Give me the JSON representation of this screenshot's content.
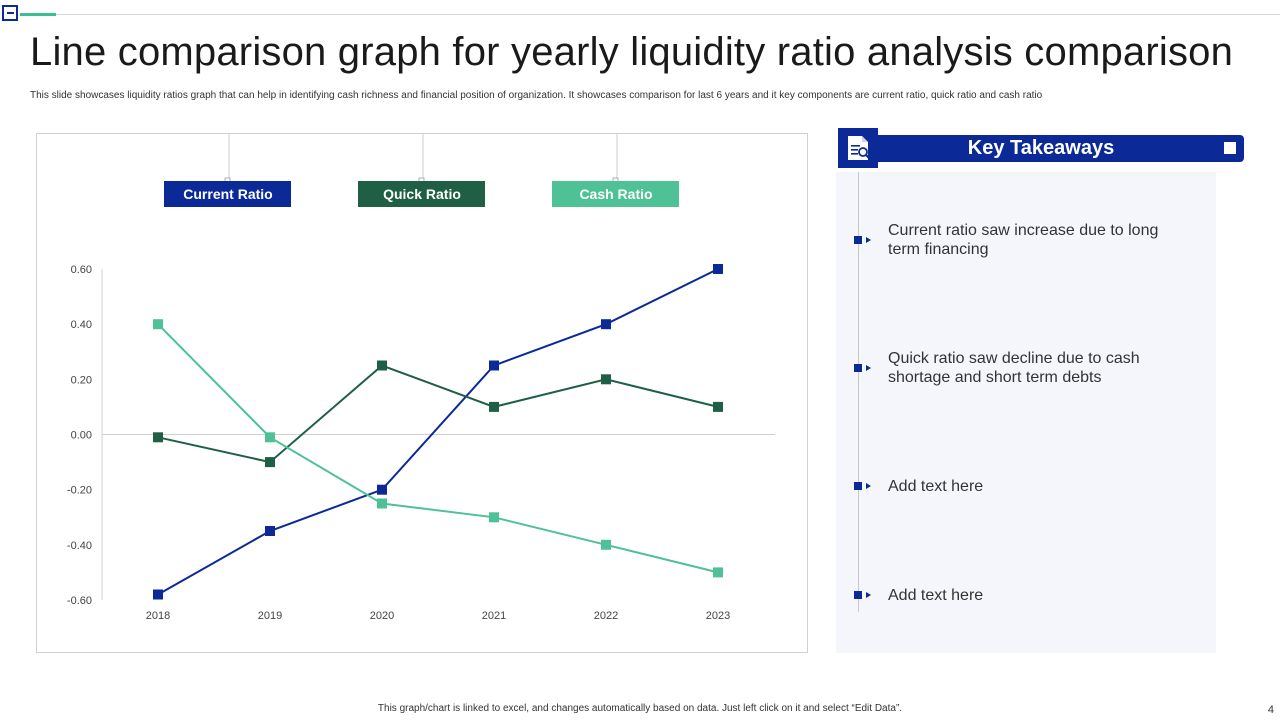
{
  "slide": {
    "title": "Line comparison graph for yearly liquidity ratio analysis comparison",
    "subtitle": "This slide showcases liquidity ratios graph that can help in identifying cash richness and financial position of organization. It showcases comparison for last 6 years and it key components are current ratio, quick ratio and cash ratio",
    "footer": "This graph/chart is linked to excel, and changes automatically based on data. Just left click on it and select “Edit Data”.",
    "page_number": "4"
  },
  "chart_data": {
    "type": "line",
    "title": "",
    "xlabel": "",
    "ylabel": "",
    "x": [
      "2018",
      "2019",
      "2020",
      "2021",
      "2022",
      "2023"
    ],
    "ylim": [
      -0.6,
      0.6
    ],
    "yticks": [
      "0.60",
      "0.40",
      "0.20",
      "0.00",
      "-0.20",
      "-0.40",
      "-0.60"
    ],
    "ytick_values": [
      0.6,
      0.4,
      0.2,
      0.0,
      -0.2,
      -0.4,
      -0.6
    ],
    "grid": false,
    "legend_position": "top",
    "series": [
      {
        "name": "Current Ratio",
        "color": "#0b2a97",
        "values": [
          -0.58,
          -0.35,
          -0.2,
          0.25,
          0.4,
          0.6
        ]
      },
      {
        "name": "Quick Ratio",
        "color": "#1f5f45",
        "values": [
          -0.01,
          -0.1,
          0.25,
          0.1,
          0.2,
          0.1
        ]
      },
      {
        "name": "Cash Ratio",
        "color": "#4ec196",
        "values": [
          0.4,
          -0.01,
          -0.25,
          -0.3,
          -0.4,
          -0.5
        ]
      }
    ]
  },
  "key_takeaways": {
    "title": "Key Takeaways",
    "items": [
      "Current ratio saw increase due to long term financing",
      "Quick ratio saw decline due to cash shortage and short term debts",
      "Add text here",
      "Add text here"
    ]
  }
}
